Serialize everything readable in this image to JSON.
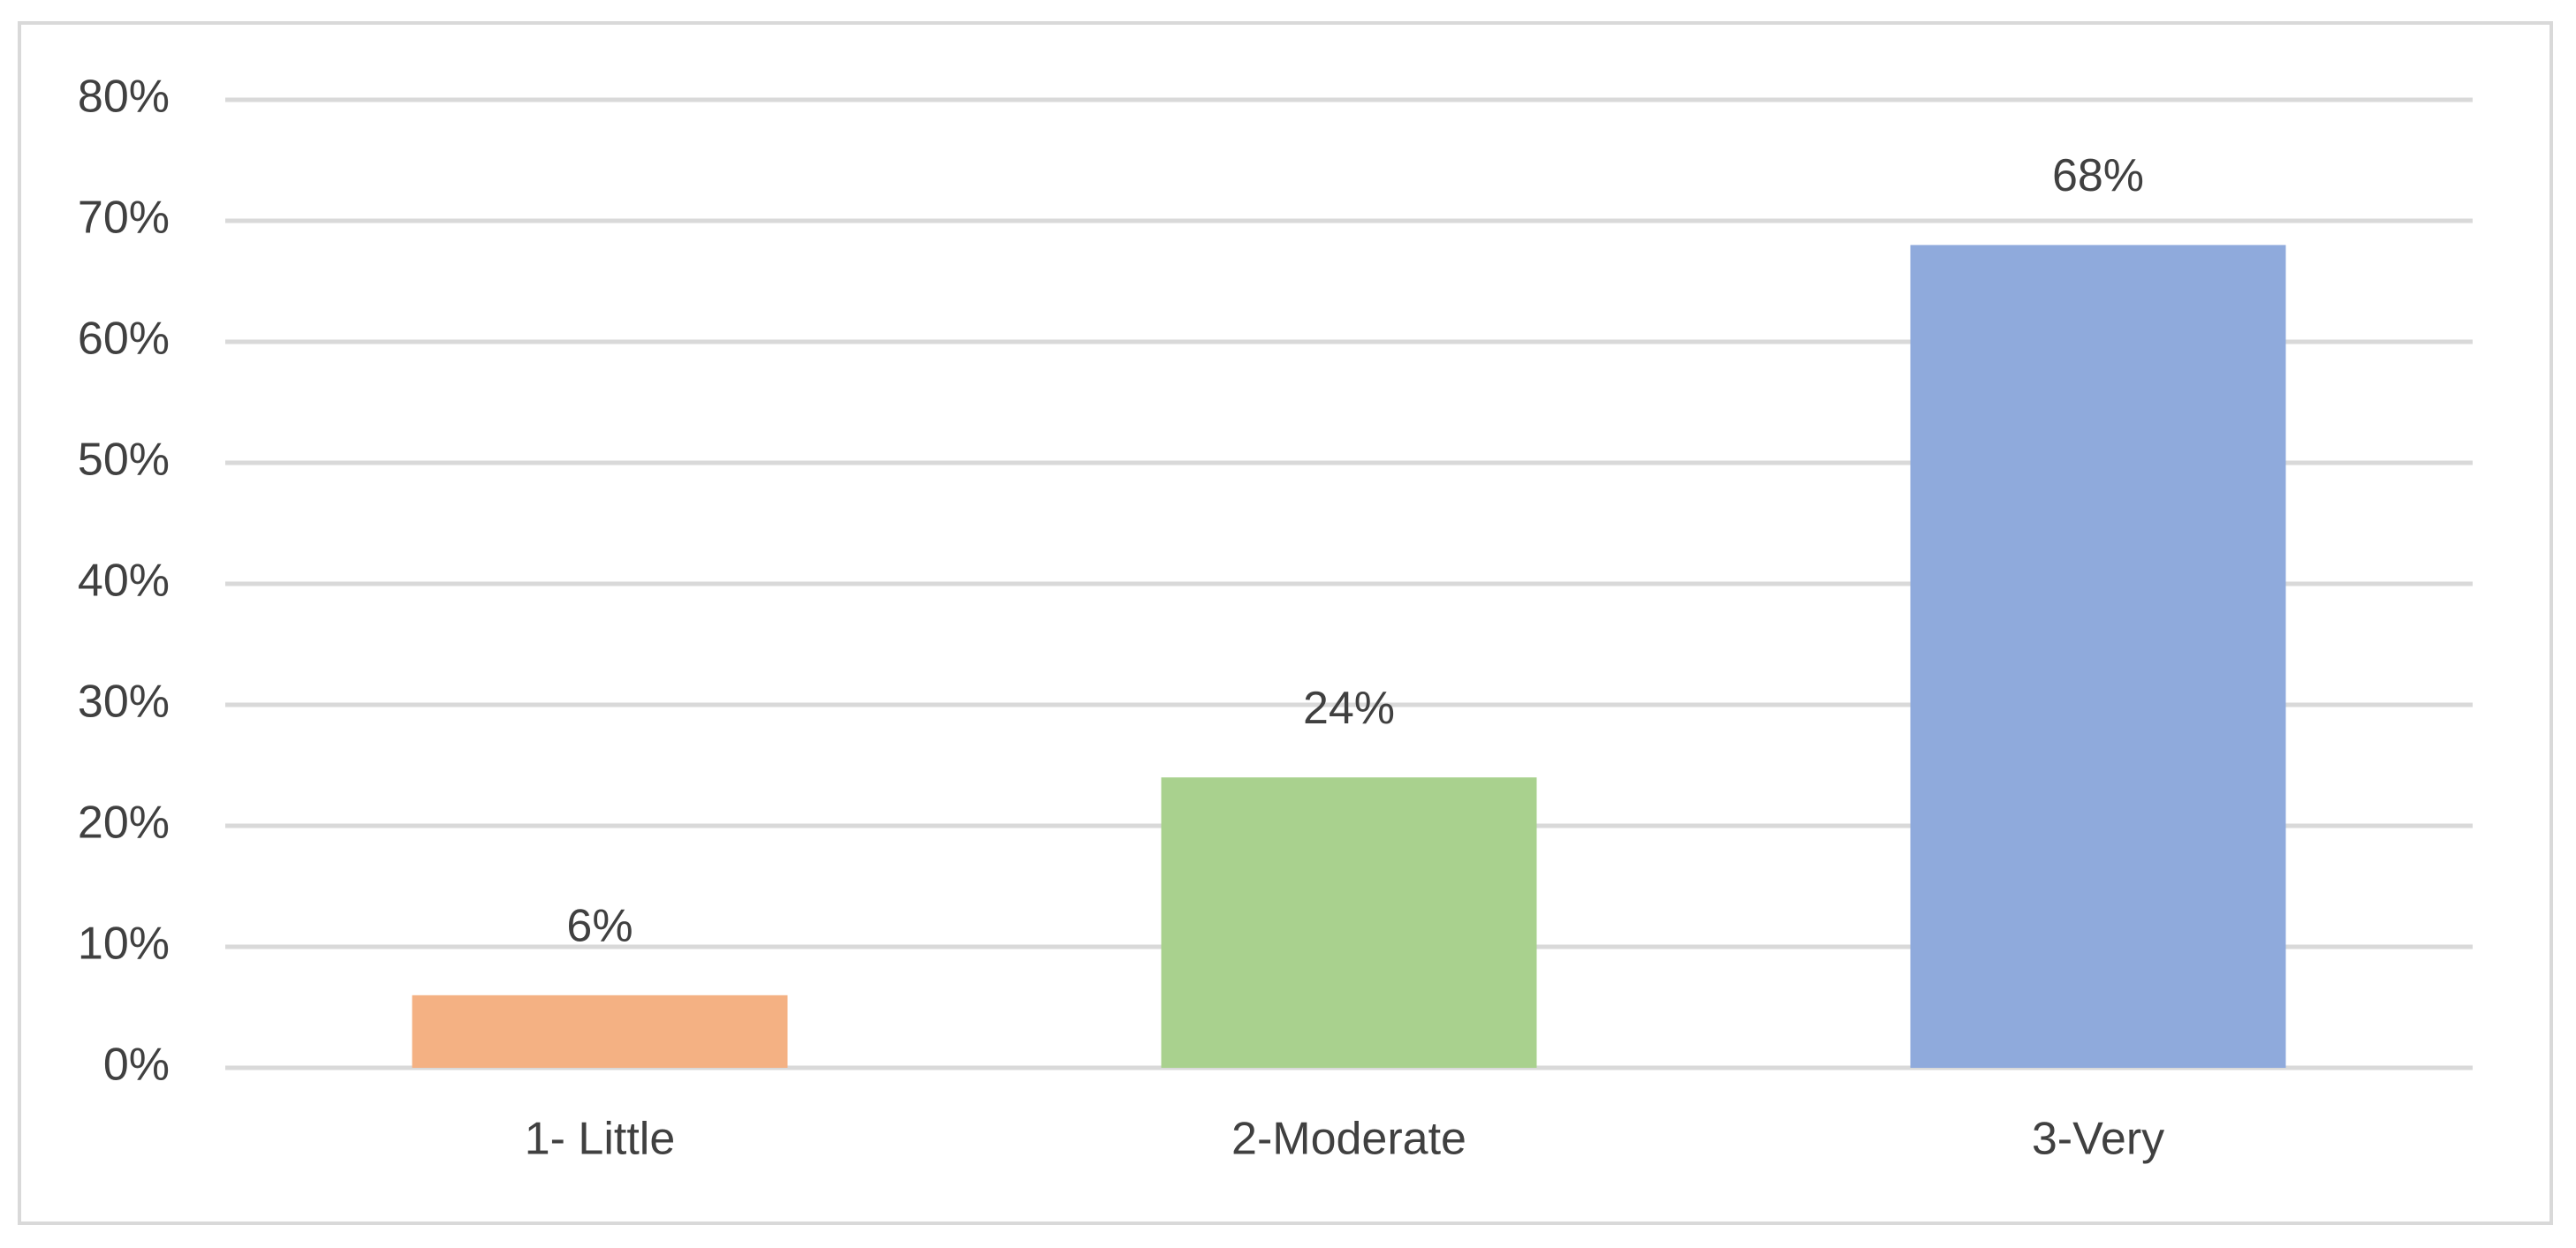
{
  "chart_data": {
    "type": "bar",
    "categories": [
      "1- Little",
      "2-Moderate",
      "3-Very"
    ],
    "values": [
      6,
      24,
      68
    ],
    "value_labels": [
      "6%",
      "24%",
      "68%"
    ],
    "colors": [
      "#f4b183",
      "#a9d18e",
      "#8faadc"
    ],
    "ylim": [
      0,
      80
    ],
    "yticks": [
      {
        "value": 0,
        "label": "0%"
      },
      {
        "value": 10,
        "label": "10%"
      },
      {
        "value": 20,
        "label": "20%"
      },
      {
        "value": 30,
        "label": "30%"
      },
      {
        "value": 40,
        "label": "40%"
      },
      {
        "value": 50,
        "label": "50%"
      },
      {
        "value": 60,
        "label": "60%"
      },
      {
        "value": 70,
        "label": "70%"
      },
      {
        "value": 80,
        "label": "80%"
      }
    ],
    "grid": true
  }
}
